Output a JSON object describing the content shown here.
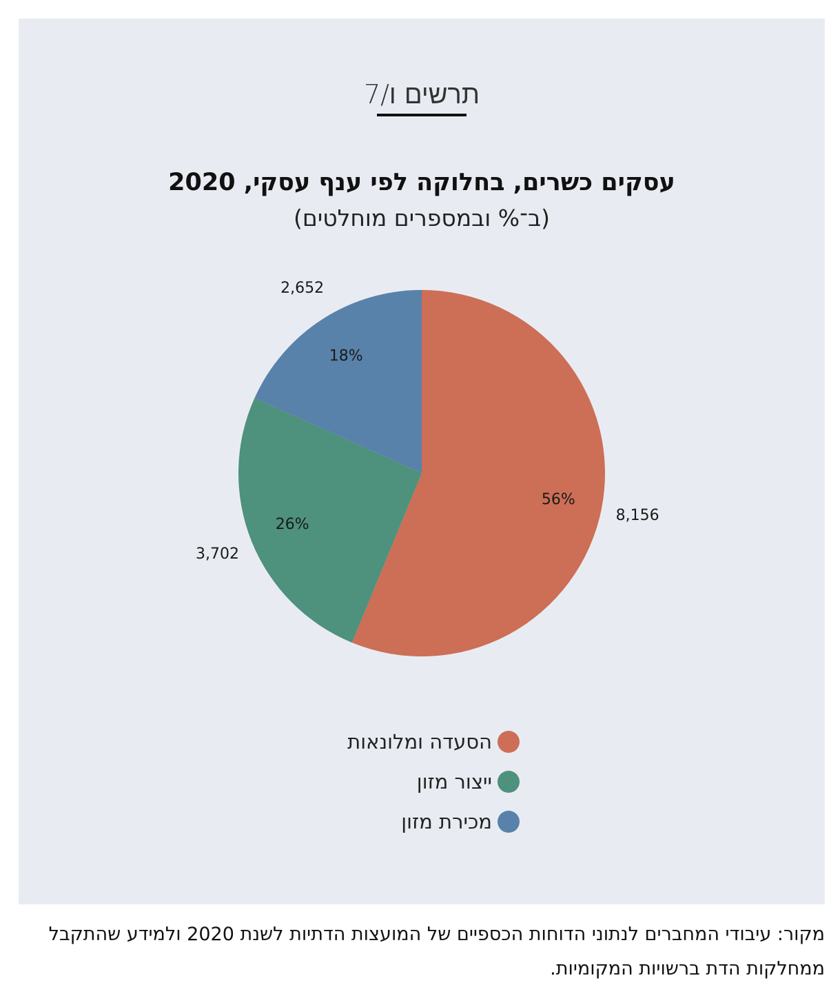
{
  "figure_label": "תרשים ו/7",
  "chart_data": {
    "type": "pie",
    "title": "עסקים כשרים, בחלוקה לפי ענף עסקי, 2020",
    "subtitle": "(ב־% ובמספרים מוחלטים)",
    "slices": [
      {
        "label": "הסעדה ומלונאות",
        "value": 8156,
        "percent_label": "56%",
        "value_label": "8,156",
        "color": "#cd6e56"
      },
      {
        "label": "ייצור מזון",
        "value": 3702,
        "percent_label": "26%",
        "value_label": "3,702",
        "color": "#4e917c"
      },
      {
        "label": "מכירת מזון",
        "value": 2652,
        "percent_label": "18%",
        "value_label": "2,652",
        "color": "#5882aa"
      }
    ],
    "legend_placement": "bottom-center"
  },
  "source_text": "מקור: עיבודי המחברים לנתוני הדוחות הכספיים של המועצות הדתיות לשנת 2020 ולמידע שהתקבל ממחלקות הדת ברשויות המקומיות."
}
